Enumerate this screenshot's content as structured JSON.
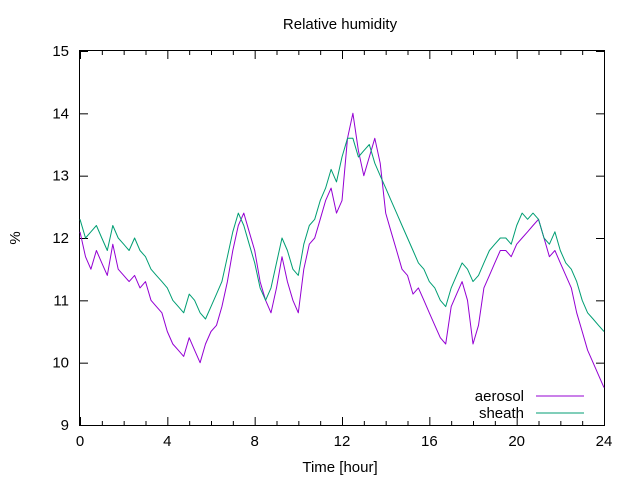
{
  "chart_data": {
    "type": "line",
    "title": "Relative humidity",
    "xlabel": "Time [hour]",
    "ylabel": "%",
    "xlim": [
      0,
      24
    ],
    "ylim": [
      9,
      15
    ],
    "xticks": [
      0,
      4,
      8,
      12,
      16,
      20,
      24
    ],
    "yticks": [
      9,
      10,
      11,
      12,
      13,
      14,
      15
    ],
    "grid": false,
    "legend_position": "bottom-right",
    "series": [
      {
        "name": "aerosol",
        "color": "#9400d3",
        "x": [
          0,
          0.25,
          0.5,
          0.75,
          1,
          1.25,
          1.5,
          1.75,
          2,
          2.25,
          2.5,
          2.75,
          3,
          3.25,
          3.5,
          3.75,
          4,
          4.25,
          4.5,
          4.75,
          5,
          5.25,
          5.5,
          5.75,
          6,
          6.25,
          6.5,
          6.75,
          7,
          7.25,
          7.5,
          7.75,
          8,
          8.25,
          8.5,
          8.75,
          9,
          9.25,
          9.5,
          9.75,
          10,
          10.25,
          10.5,
          10.75,
          11,
          11.25,
          11.5,
          11.75,
          12,
          12.25,
          12.5,
          12.75,
          13,
          13.25,
          13.5,
          13.75,
          14,
          14.25,
          14.5,
          14.75,
          15,
          15.25,
          15.5,
          15.75,
          16,
          16.25,
          16.5,
          16.75,
          17,
          17.25,
          17.5,
          17.75,
          18,
          18.25,
          18.5,
          18.75,
          19,
          19.25,
          19.5,
          19.75,
          20,
          20.25,
          20.5,
          20.75,
          21,
          21.25,
          21.5,
          21.75,
          22,
          22.25,
          22.5,
          22.75,
          23,
          23.25,
          23.5,
          23.75,
          24
        ],
        "values": [
          12.1,
          11.7,
          11.5,
          11.8,
          11.6,
          11.4,
          11.9,
          11.5,
          11.4,
          11.3,
          11.4,
          11.2,
          11.3,
          11.0,
          10.9,
          10.8,
          10.5,
          10.3,
          10.2,
          10.1,
          10.4,
          10.2,
          10.0,
          10.3,
          10.5,
          10.6,
          10.9,
          11.3,
          11.8,
          12.2,
          12.4,
          12.1,
          11.8,
          11.3,
          11.0,
          10.8,
          11.2,
          11.7,
          11.3,
          11.0,
          10.8,
          11.5,
          11.9,
          12.0,
          12.3,
          12.6,
          12.8,
          12.4,
          12.6,
          13.6,
          14.0,
          13.4,
          13.0,
          13.3,
          13.6,
          13.2,
          12.4,
          12.1,
          11.8,
          11.5,
          11.4,
          11.1,
          11.2,
          11.0,
          10.8,
          10.6,
          10.4,
          10.3,
          10.9,
          11.1,
          11.3,
          11.0,
          10.3,
          10.6,
          11.2,
          11.4,
          11.6,
          11.8,
          11.8,
          11.7,
          11.9,
          12.0,
          12.1,
          12.2,
          12.3,
          12.0,
          11.7,
          11.8,
          11.6,
          11.4,
          11.2,
          10.8,
          10.5,
          10.2,
          10.0,
          9.8,
          9.6
        ]
      },
      {
        "name": "sheath",
        "color": "#009e73",
        "x": [
          0,
          0.25,
          0.5,
          0.75,
          1,
          1.25,
          1.5,
          1.75,
          2,
          2.25,
          2.5,
          2.75,
          3,
          3.25,
          3.5,
          3.75,
          4,
          4.25,
          4.5,
          4.75,
          5,
          5.25,
          5.5,
          5.75,
          6,
          6.25,
          6.5,
          6.75,
          7,
          7.25,
          7.5,
          7.75,
          8,
          8.25,
          8.5,
          8.75,
          9,
          9.25,
          9.5,
          9.75,
          10,
          10.25,
          10.5,
          10.75,
          11,
          11.25,
          11.5,
          11.75,
          12,
          12.25,
          12.5,
          12.75,
          13,
          13.25,
          13.5,
          13.75,
          14,
          14.25,
          14.5,
          14.75,
          15,
          15.25,
          15.5,
          15.75,
          16,
          16.25,
          16.5,
          16.75,
          17,
          17.25,
          17.5,
          17.75,
          18,
          18.25,
          18.5,
          18.75,
          19,
          19.25,
          19.5,
          19.75,
          20,
          20.25,
          20.5,
          20.75,
          21,
          21.25,
          21.5,
          21.75,
          22,
          22.25,
          22.5,
          22.75,
          23,
          23.25,
          23.5,
          23.75,
          24
        ],
        "values": [
          12.3,
          12.0,
          12.1,
          12.2,
          12.0,
          11.8,
          12.2,
          12.0,
          11.9,
          11.8,
          12.0,
          11.8,
          11.7,
          11.5,
          11.4,
          11.3,
          11.2,
          11.0,
          10.9,
          10.8,
          11.1,
          11.0,
          10.8,
          10.7,
          10.9,
          11.1,
          11.3,
          11.7,
          12.1,
          12.4,
          12.2,
          11.9,
          11.6,
          11.2,
          11.0,
          11.2,
          11.6,
          12.0,
          11.8,
          11.5,
          11.4,
          11.9,
          12.2,
          12.3,
          12.6,
          12.8,
          13.1,
          12.9,
          13.3,
          13.6,
          13.6,
          13.3,
          13.4,
          13.5,
          13.2,
          13.0,
          12.8,
          12.6,
          12.4,
          12.2,
          12.0,
          11.8,
          11.6,
          11.5,
          11.3,
          11.2,
          11.0,
          10.9,
          11.2,
          11.4,
          11.6,
          11.5,
          11.3,
          11.4,
          11.6,
          11.8,
          11.9,
          12.0,
          12.0,
          11.9,
          12.2,
          12.4,
          12.3,
          12.4,
          12.3,
          12.0,
          11.9,
          12.1,
          11.8,
          11.6,
          11.5,
          11.3,
          11.0,
          10.8,
          10.7,
          10.6,
          10.5
        ]
      }
    ]
  }
}
